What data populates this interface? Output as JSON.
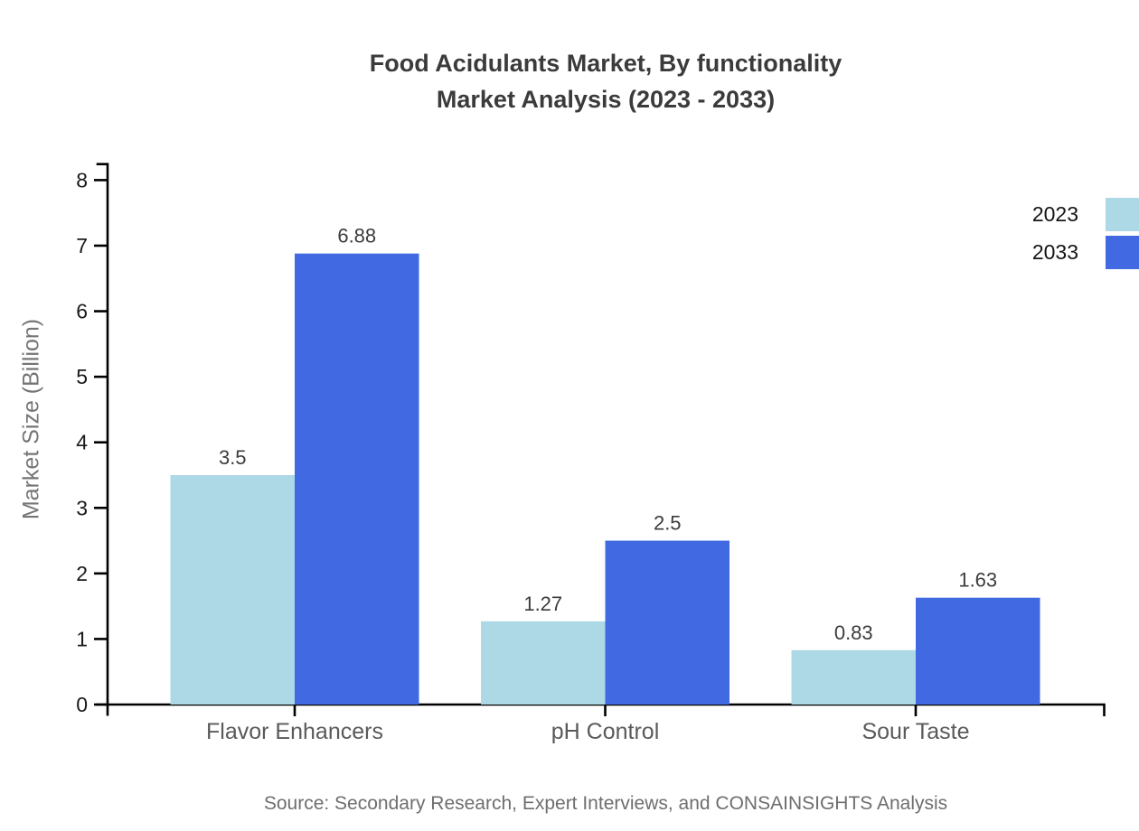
{
  "title": {
    "line1": "Food Acidulants Market, By functionality",
    "line2": "Market Analysis (2023 - 2033)"
  },
  "source": "Source: Secondary Research, Expert Interviews, and CONSAINSIGHTS Analysis",
  "chart_data": {
    "type": "bar",
    "categories": [
      "Flavor Enhancers",
      "pH Control",
      "Sour Taste"
    ],
    "series": [
      {
        "name": "2023",
        "color": "#add8e6",
        "values": [
          3.5,
          1.27,
          0.83
        ]
      },
      {
        "name": "2033",
        "color": "#4169e1",
        "values": [
          6.88,
          2.5,
          1.63
        ]
      }
    ],
    "value_labels": [
      "3.5",
      "6.88",
      "1.27",
      "2.5",
      "0.83",
      "1.63"
    ],
    "title": "Food Acidulants Market, By functionality Market Analysis (2023 - 2033)",
    "xlabel": "",
    "ylabel": "Market Size (Billion)",
    "ylim": [
      0,
      8
    ],
    "ytick_step": 1,
    "yticks": [
      0,
      1,
      2,
      3,
      4,
      5,
      6,
      7,
      8
    ],
    "grid": false,
    "legend_position": "top-right"
  },
  "colors": {
    "series_2023": "#add8e6",
    "series_2033": "#4169e1",
    "axis_line": "#000000",
    "title_text": "#3b3b3b",
    "tick_label_text": "#1a1a1a",
    "category_label_text": "#5a5a5a",
    "value_label_text": "#3c3c3c",
    "muted_text": "#6e6e6e"
  }
}
